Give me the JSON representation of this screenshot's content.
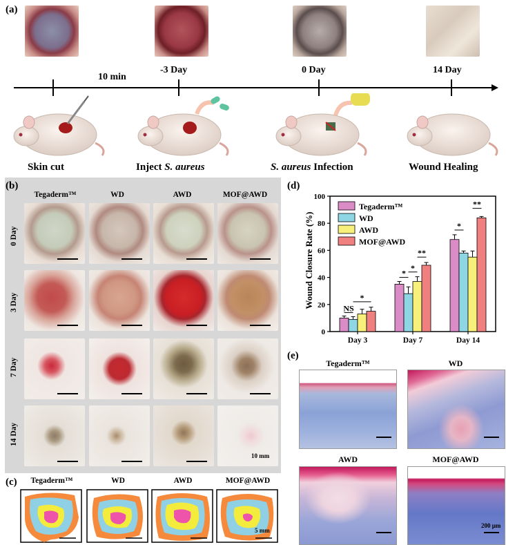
{
  "panels": {
    "a": "(a)",
    "b": "(b)",
    "c": "(c)",
    "d": "(d)",
    "e": "(e)"
  },
  "timeline": {
    "interval": "10 min",
    "times": [
      "-3 Day",
      "0 Day",
      "14 Day"
    ],
    "steps": {
      "skin_cut": "Skin cut",
      "inject_prefix": "Inject ",
      "inject_species": "S. aureus",
      "infection_species": "S. aureus",
      "infection_suffix": " Infection",
      "healing": "Wound Healing"
    }
  },
  "photo_grid": {
    "columns": [
      "Tegaderm™",
      "WD",
      "AWD",
      "MOF@AWD"
    ],
    "rows": [
      "0 Day",
      "3 Day",
      "7 Day",
      "14 Day"
    ],
    "scale_label": "10 mm"
  },
  "traces": {
    "columns": [
      "Tegaderm™",
      "WD",
      "AWD",
      "MOF@AWD"
    ],
    "scale_label": "5 mm"
  },
  "histology": {
    "titles": [
      "Tegaderm™",
      "WD",
      "AWD",
      "MOF@AWD"
    ],
    "scale_label": "200 μm"
  },
  "chart_data": {
    "type": "bar",
    "ylabel": "Wound Closure Rate (%)",
    "ylim": [
      0,
      100
    ],
    "yticks": [
      0,
      20,
      40,
      60,
      80,
      100
    ],
    "categories": [
      "Day 3",
      "Day 7",
      "Day 14"
    ],
    "legend_position": "top-left",
    "series": [
      {
        "name": "Tegaderm™",
        "color": "#d98cc6",
        "values": [
          10,
          35,
          68
        ],
        "errors": [
          1.5,
          2,
          3.5
        ]
      },
      {
        "name": "WD",
        "color": "#8fd6e4",
        "values": [
          9,
          28,
          58
        ],
        "errors": [
          2,
          5,
          1.5
        ]
      },
      {
        "name": "AWD",
        "color": "#f7f07a",
        "values": [
          13,
          37,
          55
        ],
        "errors": [
          3.5,
          3.5,
          4.5
        ]
      },
      {
        "name": "MOF@AWD",
        "color": "#f08080",
        "values": [
          15,
          49,
          84
        ],
        "errors": [
          3,
          2,
          1
        ]
      }
    ],
    "significance": [
      {
        "label": "NS",
        "group": 0,
        "from": 0,
        "to": 1,
        "y": 14
      },
      {
        "label": "*",
        "group": 0,
        "from": 1,
        "to": 3,
        "y": 22
      },
      {
        "label": "*",
        "group": 1,
        "from": 0,
        "to": 1,
        "y": 40
      },
      {
        "label": "*",
        "group": 1,
        "from": 1,
        "to": 2,
        "y": 44
      },
      {
        "label": "**",
        "group": 1,
        "from": 2,
        "to": 3,
        "y": 55
      },
      {
        "label": "*",
        "group": 2,
        "from": 0,
        "to": 1,
        "y": 75
      },
      {
        "label": "**",
        "group": 2,
        "from": 2,
        "to": 3,
        "y": 91
      }
    ]
  }
}
